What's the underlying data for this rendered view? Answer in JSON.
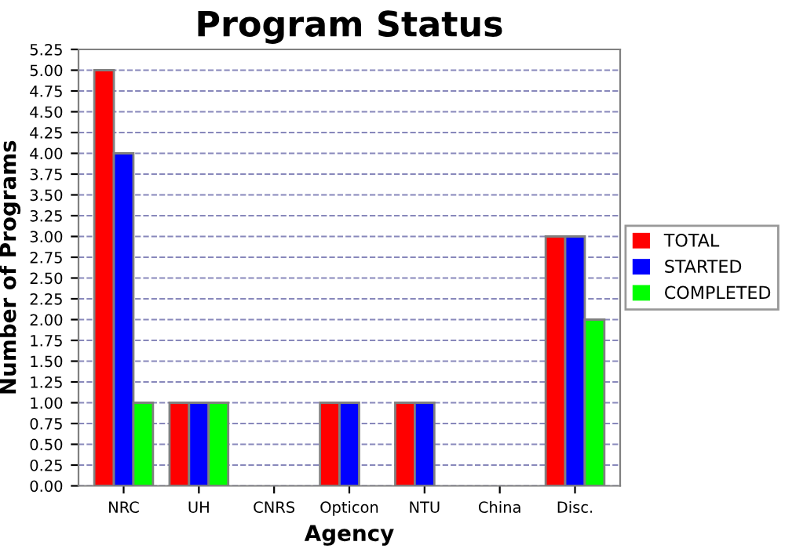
{
  "chart_data": {
    "type": "bar",
    "title": "Program Status",
    "xlabel": "Agency",
    "ylabel": "Number of Programs",
    "categories": [
      "NRC",
      "UH",
      "CNRS",
      "Opticon",
      "NTU",
      "China",
      "Disc."
    ],
    "series": [
      {
        "name": "TOTAL",
        "color": "#ff0000",
        "values": [
          5,
          1,
          0,
          1,
          1,
          0,
          3
        ]
      },
      {
        "name": "STARTED",
        "color": "#0000ff",
        "values": [
          4,
          1,
          0,
          1,
          1,
          0,
          3
        ]
      },
      {
        "name": "COMPLETED",
        "color": "#00ff00",
        "values": [
          1,
          1,
          0,
          0,
          0,
          0,
          2
        ]
      }
    ],
    "ylim": [
      0,
      5.25
    ],
    "yticks": [
      {
        "value": 0,
        "label": "0.00"
      },
      {
        "value": 0.25,
        "label": "0.25"
      },
      {
        "value": 0.5,
        "label": "0.50"
      },
      {
        "value": 0.75,
        "label": "0.75"
      },
      {
        "value": 1,
        "label": "1.00"
      },
      {
        "value": 1.25,
        "label": "1.25"
      },
      {
        "value": 1.5,
        "label": "1.50"
      },
      {
        "value": 1.75,
        "label": "1.75"
      },
      {
        "value": 2,
        "label": "2.00"
      },
      {
        "value": 2.25,
        "label": "2.25"
      },
      {
        "value": 2.5,
        "label": "2.50"
      },
      {
        "value": 2.75,
        "label": "2.75"
      },
      {
        "value": 3,
        "label": "3.00"
      },
      {
        "value": 3.25,
        "label": "3.25"
      },
      {
        "value": 3.5,
        "label": "3.50"
      },
      {
        "value": 3.75,
        "label": "3.75"
      },
      {
        "value": 4,
        "label": "4.00"
      },
      {
        "value": 4.25,
        "label": "4.25"
      },
      {
        "value": 4.5,
        "label": "4.50"
      },
      {
        "value": 4.75,
        "label": "4.75"
      },
      {
        "value": 5,
        "label": "5.00"
      },
      {
        "value": 5.25,
        "label": "5.25"
      }
    ],
    "grid": "y",
    "legend": "right"
  }
}
